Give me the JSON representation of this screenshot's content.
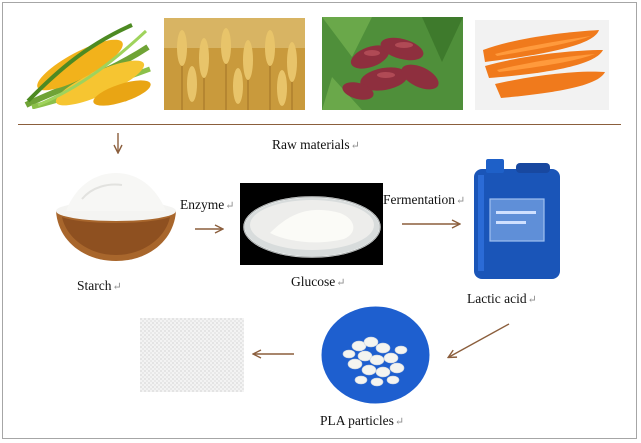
{
  "labels": {
    "raw_materials": "Raw materials",
    "starch": "Starch",
    "glucose": "Glucose",
    "lactic_acid": "Lactic acid",
    "pla_particles": "PLA particles",
    "enzyme": "Enzyme",
    "fermentation": "Fermentation",
    "return_mark": "↵"
  },
  "images": [
    "corn",
    "wheat",
    "sweet-potato",
    "carrot",
    "starch-bowl",
    "glucose-dish",
    "lactic-acid-jerrycan",
    "pla-pellets",
    "pla-fabric"
  ],
  "colors": {
    "arrow": "#8b5e3c",
    "divider": "#8b5e3c",
    "frame": "#a6a6a6"
  }
}
